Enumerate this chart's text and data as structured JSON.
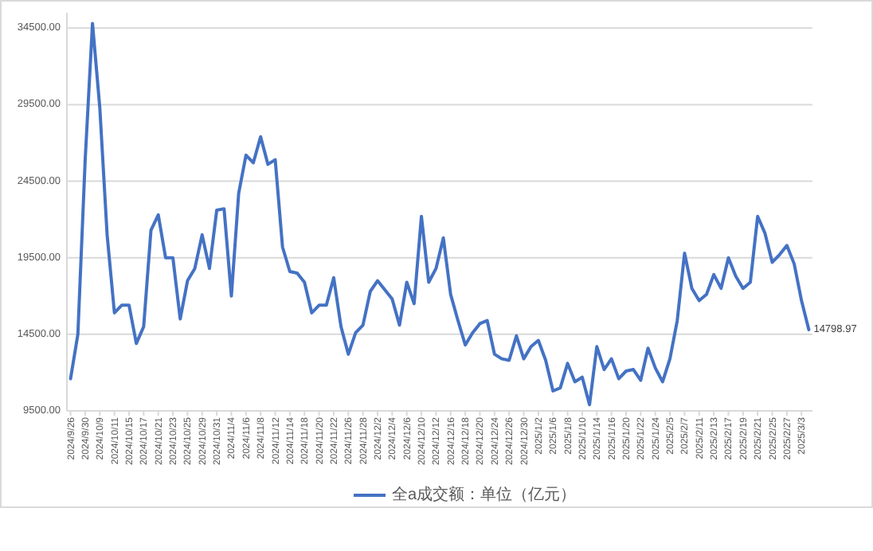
{
  "chart_data": {
    "type": "line",
    "categories": [
      "2024/9/26",
      null,
      "2024/9/30",
      null,
      "2024/10/9",
      null,
      "2024/10/11",
      null,
      "2024/10/15",
      null,
      "2024/10/17",
      null,
      "2024/10/21",
      null,
      "2024/10/23",
      null,
      "2024/10/25",
      null,
      "2024/10/29",
      null,
      "2024/10/31",
      null,
      "2024/11/4",
      null,
      "2024/11/6",
      null,
      "2024/11/8",
      null,
      "2024/11/12",
      null,
      "2024/11/14",
      null,
      "2024/11/18",
      null,
      "2024/11/20",
      null,
      "2024/11/22",
      null,
      "2024/11/26",
      null,
      "2024/11/28",
      null,
      "2024/12/2",
      null,
      "2024/12/4",
      null,
      "2024/12/6",
      null,
      "2024/12/10",
      null,
      "2024/12/12",
      null,
      "2024/12/16",
      null,
      "2024/12/18",
      null,
      "2024/12/20",
      null,
      "2024/12/24",
      null,
      "2024/12/26",
      null,
      "2024/12/30",
      null,
      "2025/1/2",
      null,
      "2025/1/6",
      null,
      "2025/1/8",
      null,
      "2025/1/10",
      null,
      "2025/1/14",
      null,
      "2025/1/16",
      null,
      "2025/1/20",
      null,
      "2025/1/22",
      null,
      "2025/1/24",
      null,
      "2025/2/5",
      null,
      "2025/2/7",
      null,
      "2025/2/11",
      null,
      "2025/2/13",
      null,
      "2025/2/17",
      null,
      "2025/2/19",
      null,
      "2025/2/21",
      null,
      "2025/2/25",
      null,
      "2025/2/27",
      null,
      "2025/3/3",
      null
    ],
    "series": [
      {
        "name": "全a成交额：单位（亿元）",
        "color": "#4472c4",
        "values": [
          11600,
          14500,
          25900,
          34800,
          29300,
          21000,
          15900,
          16400,
          16400,
          13900,
          15000,
          21300,
          22300,
          19500,
          19500,
          15500,
          18000,
          18800,
          21000,
          18800,
          22600,
          22700,
          17000,
          23700,
          26200,
          25700,
          27400,
          25600,
          25900,
          20200,
          18600,
          18500,
          17900,
          15900,
          16400,
          16400,
          18200,
          15000,
          13200,
          14600,
          15100,
          17300,
          18000,
          17400,
          16800,
          15100,
          17900,
          16500,
          22200,
          17900,
          18800,
          20800,
          17100,
          15400,
          13800,
          14600,
          15200,
          15400,
          13200,
          12900,
          12800,
          14400,
          12900,
          13700,
          14100,
          12800,
          10800,
          11000,
          12600,
          11400,
          11700,
          9900,
          13700,
          12200,
          12900,
          11600,
          12100,
          12200,
          11500,
          13600,
          12300,
          11400,
          12900,
          15400,
          19800,
          17500,
          16700,
          17100,
          18400,
          17500,
          19500,
          18300,
          17500,
          17900,
          22200,
          21100,
          19200,
          19700,
          20300,
          19100,
          16700,
          14798.97
        ],
        "value_labels": [
          null,
          null,
          null,
          null,
          null,
          null,
          null,
          null,
          null,
          null,
          null,
          null,
          null,
          null,
          null,
          null,
          null,
          null,
          null,
          null,
          null,
          null,
          null,
          null,
          null,
          null,
          null,
          null,
          null,
          null,
          null,
          null,
          null,
          null,
          null,
          null,
          null,
          null,
          null,
          null,
          null,
          null,
          null,
          null,
          null,
          null,
          null,
          null,
          null,
          null,
          null,
          null,
          null,
          null,
          null,
          null,
          null,
          null,
          null,
          null,
          null,
          null,
          null,
          null,
          null,
          null,
          null,
          null,
          null,
          null,
          null,
          null,
          null,
          null,
          null,
          null,
          null,
          null,
          null,
          null,
          null,
          null,
          null,
          null,
          null,
          null,
          null,
          null,
          null,
          null,
          null,
          null,
          null,
          null,
          null,
          null,
          null,
          null,
          null,
          null,
          null,
          "14798.97"
        ]
      }
    ],
    "ylim": [
      9500,
      35500
    ],
    "yticks": [
      {
        "value": 9500,
        "label": "9500.00"
      },
      {
        "value": 14500,
        "label": "14500.00"
      },
      {
        "value": 19500,
        "label": "19500.00"
      },
      {
        "value": 24500,
        "label": "24500.00"
      },
      {
        "value": 29500,
        "label": "29500.00"
      },
      {
        "value": 34500,
        "label": "34500.00"
      }
    ],
    "grid": "y",
    "legend": "bottom",
    "marker": "none",
    "line_style": "solid"
  }
}
